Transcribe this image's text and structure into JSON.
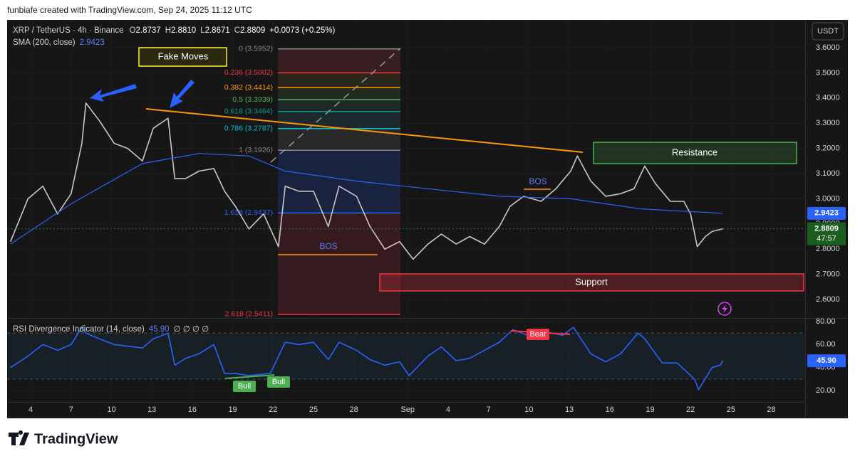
{
  "header": {
    "credit": "funbiafe created with TradingView.com, Sep 24, 2025 11:12 UTC",
    "currency": "USDT",
    "logo": "TradingView"
  },
  "chart_data": [
    {
      "type": "line",
      "ohlc": [
        {
          "key": "O",
          "value": 2.8737
        },
        {
          "key": "H",
          "value": 2.881
        },
        {
          "key": "L",
          "value": 2.8671
        },
        {
          "key": "C",
          "value": 2.8809
        }
      ],
      "ohlc_labels": [
        "2.8737",
        "2.8810",
        "2.8671",
        "2.8809"
      ],
      "change": "+0.0073 (+0.25%)",
      "sma_value": 2.9423,
      "last_price": 2.8809,
      "countdown": "47:57",
      "x": [
        -1.5,
        -0.2,
        0.9,
        2.0,
        3.0,
        3.8,
        4.1,
        5.1,
        6.2,
        7.2,
        8.3,
        9.1,
        10.2,
        10.7,
        11.5,
        12.5,
        13.6,
        14.4,
        15.2,
        16.2,
        17.3,
        18.4,
        18.9,
        19.9,
        21.0,
        22.1,
        22.9,
        24.2,
        25.2,
        26.3,
        27.4,
        28.4,
        29.5,
        30.5,
        31.6,
        32.6,
        33.7,
        34.8,
        35.6,
        36.6,
        37.9,
        39.0,
        40.1,
        40.6,
        41.6,
        42.7,
        43.8,
        44.8,
        45.6,
        46.4,
        47.5,
        48.5,
        49.0,
        49.5,
        50.1,
        50.6,
        51.4
      ],
      "series": [
        {
          "name": "XRP / TetherUS · 4h · Binance",
          "color": "#c8c8c8",
          "values": [
            2.83,
            3.0,
            3.05,
            2.94,
            3.02,
            3.22,
            3.38,
            3.31,
            3.22,
            3.2,
            3.15,
            3.28,
            3.32,
            3.08,
            3.08,
            3.11,
            3.12,
            3.03,
            2.97,
            2.88,
            2.94,
            2.81,
            3.05,
            3.03,
            3.03,
            2.89,
            3.05,
            3.01,
            2.89,
            2.8,
            2.83,
            2.76,
            2.82,
            2.86,
            2.82,
            2.85,
            2.82,
            2.89,
            2.97,
            3.01,
            2.99,
            3.04,
            3.11,
            3.17,
            3.07,
            3.01,
            3.02,
            3.04,
            3.13,
            3.06,
            2.99,
            2.99,
            2.94,
            2.81,
            2.85,
            2.87,
            2.8809
          ]
        },
        {
          "name": "SMA (200, close)",
          "color": "#2962ff",
          "x": [
            -1.5,
            3.0,
            8.3,
            12.5,
            16.2,
            18.9,
            24.2,
            29.5,
            34.8,
            40.1,
            45.3,
            51.4
          ],
          "values": [
            2.82,
            2.98,
            3.14,
            3.18,
            3.17,
            3.11,
            3.07,
            3.04,
            3.01,
            3.0,
            2.96,
            2.9423
          ]
        }
      ],
      "xlim": [
        -1.75,
        57.51
      ],
      "ylim": [
        2.5266,
        3.7102
      ],
      "xticks": [
        {
          "value": 0,
          "label": "4"
        },
        {
          "value": 3,
          "label": "7"
        },
        {
          "value": 6,
          "label": "10"
        },
        {
          "value": 9,
          "label": "13"
        },
        {
          "value": 12,
          "label": "16"
        },
        {
          "value": 15,
          "label": "19"
        },
        {
          "value": 18,
          "label": "22"
        },
        {
          "value": 21,
          "label": "25"
        },
        {
          "value": 24,
          "label": "28"
        },
        {
          "value": 28,
          "label": "Sep"
        },
        {
          "value": 31,
          "label": "4"
        },
        {
          "value": 34,
          "label": "7"
        },
        {
          "value": 37,
          "label": "10"
        },
        {
          "value": 40,
          "label": "13"
        },
        {
          "value": 43,
          "label": "16"
        },
        {
          "value": 46,
          "label": "19"
        },
        {
          "value": 49,
          "label": "22"
        },
        {
          "value": 52,
          "label": "25"
        },
        {
          "value": 55,
          "label": "28"
        }
      ],
      "yticks": [
        {
          "value": 3.6,
          "label": "3.6000"
        },
        {
          "value": 3.5,
          "label": "3.5000"
        },
        {
          "value": 3.4,
          "label": "3.4000"
        },
        {
          "value": 3.3,
          "label": "3.3000"
        },
        {
          "value": 3.2,
          "label": "3.2000"
        },
        {
          "value": 3.1,
          "label": "3.1000"
        },
        {
          "value": 3.0,
          "label": "3.0000"
        },
        {
          "value": 2.9,
          "label": "2.9000"
        },
        {
          "value": 2.8,
          "label": "2.8000"
        },
        {
          "value": 2.7,
          "label": "2.7000"
        },
        {
          "value": 2.6,
          "label": "2.6000"
        }
      ],
      "fibonacci": [
        {
          "label": "0 (3.5952)",
          "price": 3.5952,
          "color": "#888888"
        },
        {
          "label": "0.236 (3.5002)",
          "price": 3.5002,
          "color": "#f23645"
        },
        {
          "label": "0.382 (3.4414)",
          "price": 3.4414,
          "color": "#ff9800"
        },
        {
          "label": "0.5 (3.3939)",
          "price": 3.3939,
          "color": "#4caf50"
        },
        {
          "label": "0.618 (3.3464)",
          "price": 3.3464,
          "color": "#089981"
        },
        {
          "label": "0.786 (3.2787)",
          "price": 3.2787,
          "color": "#00bcd4"
        },
        {
          "label": "1 (3.1926)",
          "price": 3.1926,
          "color": "#888888"
        },
        {
          "label": "1.618 (2.9437)",
          "price": 2.9437,
          "color": "#2962ff"
        },
        {
          "label": "2.618 (2.5411)",
          "price": 2.5411,
          "color": "#f23645"
        }
      ],
      "annotations": {
        "fake_moves": "Fake Moves",
        "resistance": "Resistance",
        "support": "Support",
        "bos": [
          "BOS",
          "BOS"
        ]
      }
    },
    {
      "type": "line",
      "title": "RSI Divergence Indicator (14, close)",
      "value": 45.9,
      "value_label": "45.90",
      "extra": "∅ ∅ ∅ ∅",
      "x": [
        -1.5,
        -0.2,
        0.9,
        2.0,
        3.0,
        3.8,
        4.1,
        5.1,
        6.2,
        8.3,
        9.1,
        10.2,
        10.7,
        11.5,
        12.5,
        13.6,
        14.4,
        15.2,
        16.2,
        17.8,
        18.9,
        19.9,
        21.0,
        22.1,
        22.9,
        24.2,
        25.2,
        26.3,
        27.4,
        28.1,
        29.5,
        30.5,
        31.6,
        32.6,
        34.8,
        35.8,
        36.9,
        37.9,
        39.5,
        40.3,
        41.6,
        42.7,
        43.8,
        45.1,
        45.6,
        46.9,
        48.0,
        49.3,
        49.6,
        50.6,
        51.2,
        51.4
      ],
      "values": [
        40,
        50,
        60,
        55,
        60,
        75,
        70,
        65,
        60,
        57,
        65,
        70,
        42,
        48,
        52,
        60,
        35,
        35,
        33,
        35,
        62,
        60,
        62,
        47,
        62,
        55,
        47,
        42,
        45,
        33,
        50,
        58,
        46,
        48,
        62,
        73,
        68,
        72,
        68,
        75,
        52,
        45,
        52,
        70,
        65,
        44,
        44,
        30,
        21,
        40,
        42,
        45.9
      ],
      "labels": [
        "Bull",
        "Bull",
        "Bear"
      ],
      "xlim": [
        -1.75,
        57.51
      ],
      "ylim": [
        10.12,
        82.47
      ],
      "yticks": [
        {
          "value": 80,
          "label": "80.00"
        },
        {
          "value": 60,
          "label": "60.00"
        },
        {
          "value": 40,
          "label": "40.00"
        },
        {
          "value": 20,
          "label": "20.00"
        }
      ],
      "band": [
        30,
        70
      ]
    }
  ]
}
